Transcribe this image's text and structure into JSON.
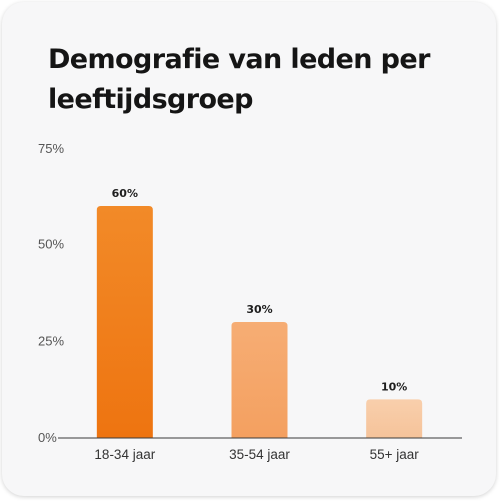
{
  "chart_data": {
    "type": "bar",
    "title": "Demografie van leden per leeftijdsgroep",
    "xlabel": "",
    "ylabel": "",
    "categories": [
      "18-34 jaar",
      "35-54 jaar",
      "55+ jaar"
    ],
    "values": [
      60,
      30,
      10
    ],
    "value_labels": [
      "60%",
      "30%",
      "10%"
    ],
    "yticks": [
      0,
      25,
      50,
      75
    ],
    "ytick_labels": [
      "0%",
      "25%",
      "50%",
      "75%"
    ],
    "ylim": [
      0,
      75
    ],
    "grid": false,
    "legend": "none",
    "colors": [
      {
        "top": "#f28a28",
        "bottom": "#ee7410"
      },
      {
        "top": "#f6ad74",
        "bottom": "#f4a060"
      },
      {
        "top": "#f8cfac",
        "bottom": "#f6c39a"
      }
    ]
  }
}
